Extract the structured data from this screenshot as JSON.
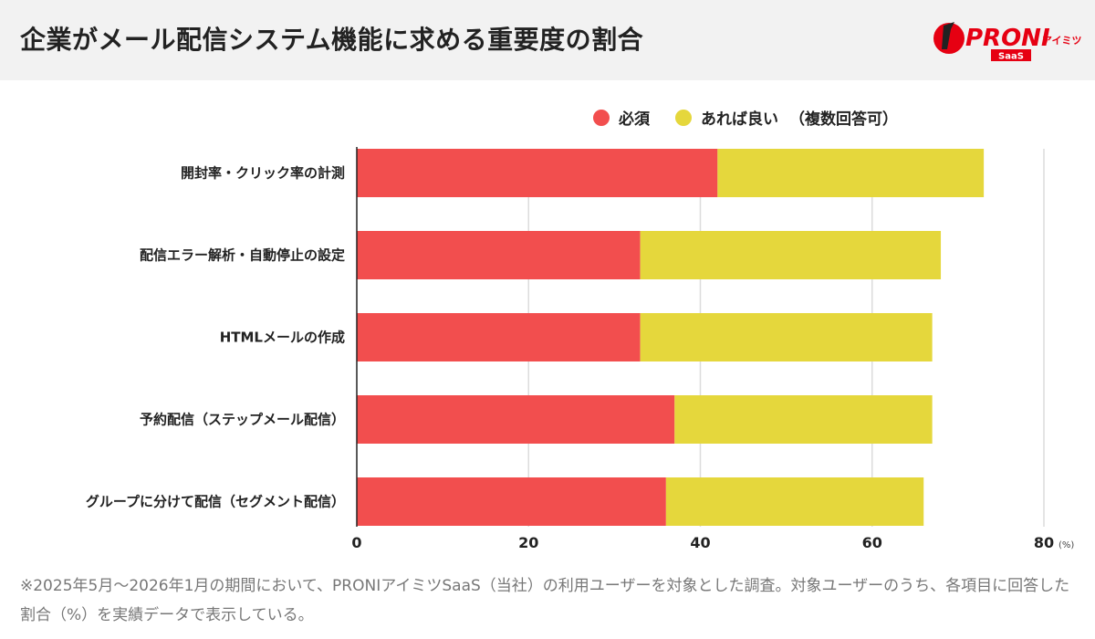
{
  "header": {
    "title": "企業がメール配信システム機能に求める重要度の割合"
  },
  "logo": {
    "text": "PRONI",
    "sub": "アイミツ",
    "badge": "SaaS"
  },
  "chart_data": {
    "type": "bar",
    "orientation": "horizontal",
    "stacked": true,
    "categories": [
      "開封率・クリック率の計測",
      "配信エラー解析・自動停止の設定",
      "HTMLメールの作成",
      "予約配信（ステップメール配信）",
      "グループに分けて配信（セグメント配信）"
    ],
    "series": [
      {
        "name": "必須",
        "color": "#f24e4e",
        "values": [
          42,
          33,
          33,
          37,
          36
        ]
      },
      {
        "name": "あれば良い",
        "color": "#e5d73c",
        "values": [
          31,
          35,
          34,
          30,
          30
        ]
      }
    ],
    "legend_note": "（複数回答可）",
    "xlim": [
      0,
      80
    ],
    "xticks": [
      "0",
      "20",
      "40",
      "60",
      "80"
    ],
    "xunit": "(%)",
    "grid": true,
    "legend_position": "top-right"
  },
  "footnote": "※2025年5月〜2026年1月の期間において、PRONIアイミツSaaS（当社）の利用ユーザーを対象とした調査。対象ユーザーのうち、各項目に回答した割合（%）を実績データで表示している。"
}
